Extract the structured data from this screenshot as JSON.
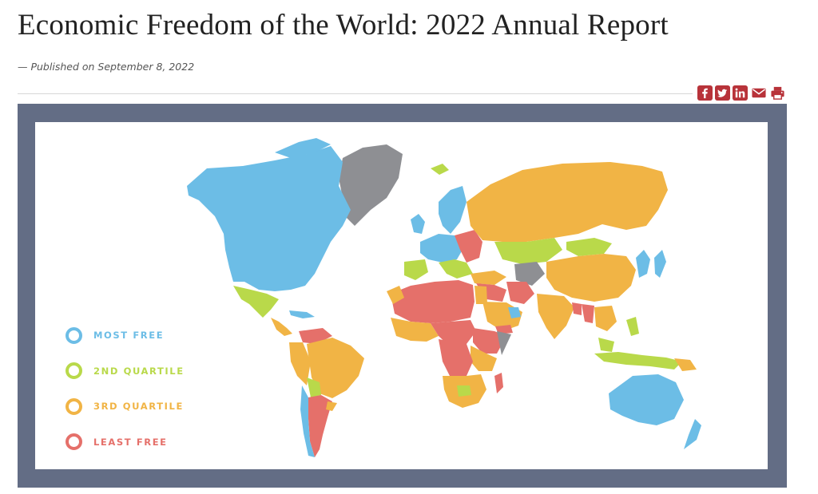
{
  "page": {
    "title": "Economic Freedom of the World: 2022 Annual Report",
    "byline": "— Published on September 8, 2022"
  },
  "share": {
    "icons": [
      "facebook-icon",
      "twitter-icon",
      "linkedin-icon",
      "email-icon",
      "print-icon"
    ],
    "color": "#b8333a"
  },
  "map": {
    "legend": [
      {
        "label": "MOST FREE",
        "color": "#6cbde6"
      },
      {
        "label": "2ND QUARTILE",
        "color": "#b9d94a"
      },
      {
        "label": "3RD QUARTILE",
        "color": "#f1b445"
      },
      {
        "label": "LEAST FREE",
        "color": "#e5706a"
      }
    ],
    "no_data_color": "#8e8f93",
    "frame_color": "#636d85"
  }
}
